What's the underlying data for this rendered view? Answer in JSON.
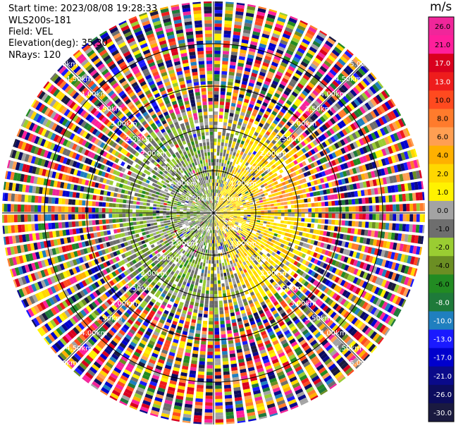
{
  "header": {
    "start_time": "Start time: 2023/08/08 19:28:33",
    "device": "WLS200s-181",
    "field": "Field: VEL",
    "elevation": "Elevation(deg): 35.30",
    "nrays": "NRays: 120"
  },
  "chart_data": {
    "type": "polar-ppi",
    "field": "VEL",
    "unit": "m/s",
    "nrays": 120,
    "elevation_deg": 35.3,
    "range_rings_km": [
      0.5,
      1.0,
      1.5,
      2.0,
      2.5,
      3.0,
      3.5,
      4.0,
      4.5,
      5.0
    ],
    "ring_labels": [
      "0.50km",
      "1.00km",
      "1.50km",
      "2.00km",
      "2.50km",
      "3.00km",
      "3.50km",
      "4.00km",
      "4.50km",
      "5.00km"
    ],
    "max_range_km": 5.0,
    "colorbar": {
      "ticks": [
        "26.0",
        "21.0",
        "17.0",
        "13.0",
        "10.0",
        "8.0",
        "6.0",
        "4.0",
        "2.0",
        "1.0",
        "0.0",
        "-1.0",
        "-2.0",
        "-4.0",
        "-6.0",
        "-8.0",
        "-10.0",
        "-13.0",
        "-17.0",
        "-21.0",
        "-26.0",
        "-30.0"
      ],
      "colors": [
        "#f0269a",
        "#ff1f9b",
        "#d9001e",
        "#ee1c1c",
        "#ff4a1f",
        "#ff7b2c",
        "#ff9f52",
        "#ffb000",
        "#ffd700",
        "#fff200",
        "#a3a3a3",
        "#6e6e6e",
        "#9acd32",
        "#6b8e23",
        "#228b22",
        "#1e7a3a",
        "#1f7fbf",
        "#1a1aff",
        "#0000cd",
        "#0a0a8a",
        "#0c0c5e",
        "#1a1a40"
      ]
    },
    "pattern": "near field: green/gray (approaching) to the west, yellow/orange (receding) to the east; far field beyond ~2.5 km: noise of all colors"
  }
}
